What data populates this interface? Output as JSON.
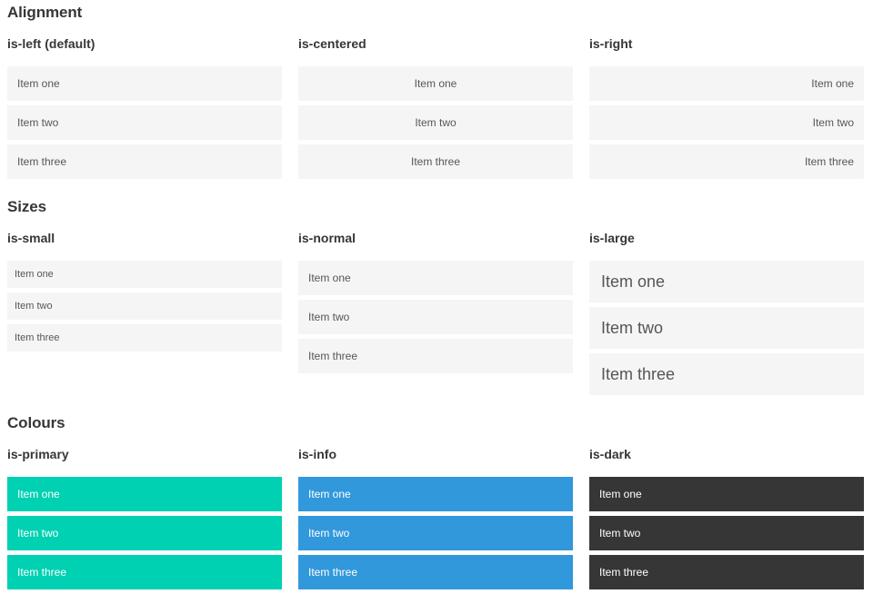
{
  "sections": [
    {
      "title": "Alignment",
      "columns": [
        {
          "label": "is-left (default)",
          "variant": "left",
          "items": [
            "Item one",
            "Item two",
            "Item three"
          ]
        },
        {
          "label": "is-centered",
          "variant": "centered",
          "items": [
            "Item one",
            "Item two",
            "Item three"
          ]
        },
        {
          "label": "is-right",
          "variant": "right",
          "items": [
            "Item one",
            "Item two",
            "Item three"
          ]
        }
      ]
    },
    {
      "title": "Sizes",
      "columns": [
        {
          "label": "is-small",
          "variant": "small",
          "items": [
            "Item one",
            "Item two",
            "Item three"
          ]
        },
        {
          "label": "is-normal",
          "variant": "normal",
          "items": [
            "Item one",
            "Item two",
            "Item three"
          ]
        },
        {
          "label": "is-large",
          "variant": "large",
          "items": [
            "Item one",
            "Item two",
            "Item three"
          ]
        }
      ]
    },
    {
      "title": "Colours",
      "columns": [
        {
          "label": "is-primary",
          "variant": "primary",
          "items": [
            "Item one",
            "Item two",
            "Item three"
          ]
        },
        {
          "label": "is-info",
          "variant": "info",
          "items": [
            "Item one",
            "Item two",
            "Item three"
          ]
        },
        {
          "label": "is-dark",
          "variant": "dark",
          "items": [
            "Item one",
            "Item two",
            "Item three"
          ]
        }
      ]
    }
  ],
  "colors": {
    "primary": "#00d1b2",
    "info": "#3298dc",
    "dark": "#363636",
    "item_bg": "#f5f5f5",
    "item_text": "#54565a",
    "heading": "#363636"
  }
}
